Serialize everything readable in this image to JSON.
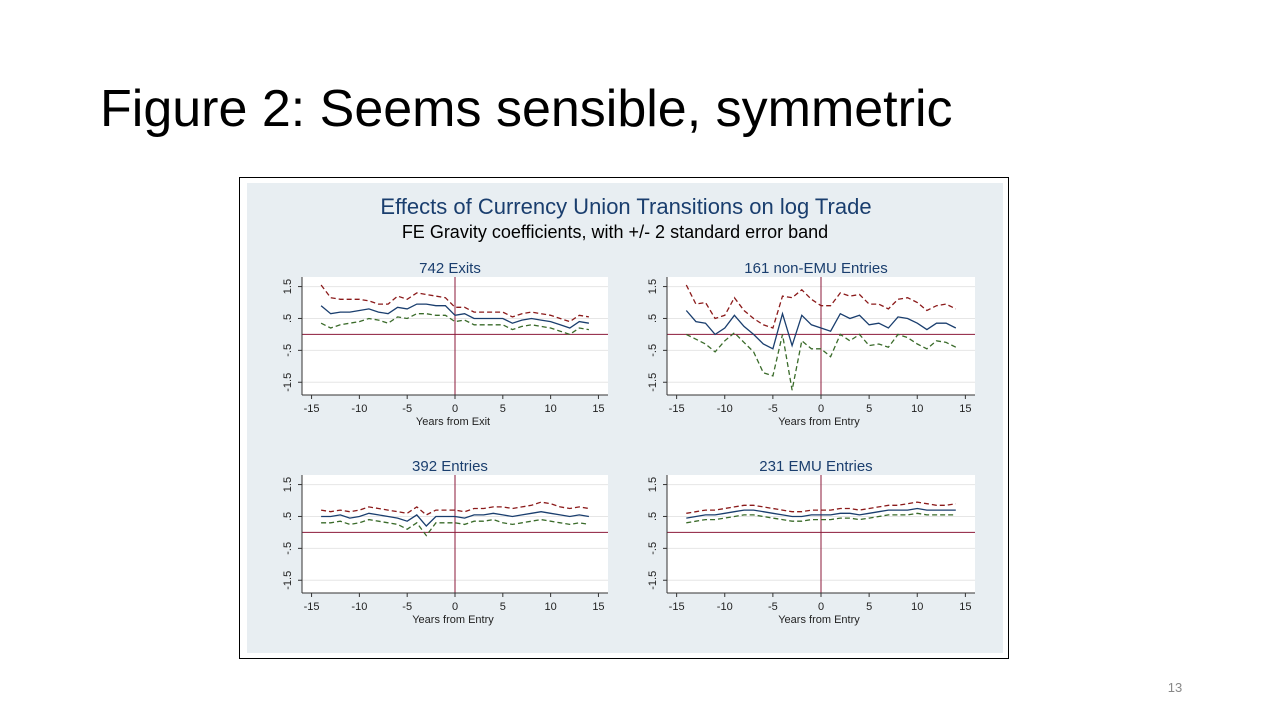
{
  "title": "Figure 2: Seems sensible, symmetric",
  "page_number": "13",
  "figure": {
    "title": "Effects of Currency Union Transitions on log Trade",
    "subtitle": "FE Gravity coefficients, with +/- 2 standard error band"
  },
  "chart_data": [
    {
      "type": "line",
      "title": "742 Exits",
      "xlabel": "Years from Exit",
      "x": [
        -14,
        -13,
        -12,
        -11,
        -10,
        -9,
        -8,
        -7,
        -6,
        -5,
        -4,
        -3,
        -2,
        -1,
        0,
        1,
        2,
        3,
        4,
        5,
        6,
        7,
        8,
        9,
        10,
        11,
        12,
        13,
        14
      ],
      "series": [
        {
          "color": "#8b1a1a",
          "dash": true,
          "values": [
            1.55,
            1.15,
            1.1,
            1.1,
            1.1,
            1.05,
            0.95,
            0.95,
            1.2,
            1.1,
            1.3,
            1.25,
            1.2,
            1.15,
            0.85,
            0.85,
            0.7,
            0.7,
            0.7,
            0.7,
            0.55,
            0.65,
            0.7,
            0.65,
            0.6,
            0.5,
            0.4,
            0.6,
            0.55
          ]
        },
        {
          "color": "#1a3e6e",
          "dash": false,
          "values": [
            0.9,
            0.65,
            0.7,
            0.7,
            0.75,
            0.8,
            0.7,
            0.65,
            0.85,
            0.8,
            0.95,
            0.95,
            0.9,
            0.9,
            0.6,
            0.65,
            0.5,
            0.5,
            0.5,
            0.5,
            0.35,
            0.45,
            0.5,
            0.45,
            0.4,
            0.3,
            0.2,
            0.4,
            0.35
          ]
        },
        {
          "color": "#3a6b2a",
          "dash": true,
          "values": [
            0.35,
            0.2,
            0.3,
            0.35,
            0.4,
            0.5,
            0.45,
            0.35,
            0.55,
            0.5,
            0.65,
            0.65,
            0.6,
            0.6,
            0.4,
            0.45,
            0.3,
            0.3,
            0.3,
            0.3,
            0.15,
            0.25,
            0.3,
            0.25,
            0.2,
            0.1,
            0.0,
            0.2,
            0.15
          ]
        }
      ],
      "xlim": [
        -16,
        16
      ],
      "xticks": [
        -15,
        -10,
        -5,
        0,
        5,
        10,
        15
      ],
      "ylim": [
        -1.9,
        1.8
      ],
      "yticks": [
        -1.5,
        {
          "value": -0.5,
          "label": "-.5"
        },
        {
          "value": 0.5,
          "label": ".5"
        },
        1.5
      ],
      "grid": true
    },
    {
      "type": "line",
      "title": "161 non-EMU Entries",
      "xlabel": "Years from Entry",
      "x": [
        -14,
        -13,
        -12,
        -11,
        -10,
        -9,
        -8,
        -7,
        -6,
        -5,
        -4,
        -3,
        -2,
        -1,
        0,
        1,
        2,
        3,
        4,
        5,
        6,
        7,
        8,
        9,
        10,
        11,
        12,
        13,
        14
      ],
      "series": [
        {
          "color": "#8b1a1a",
          "dash": true,
          "values": [
            1.55,
            0.95,
            1.0,
            0.5,
            0.6,
            1.15,
            0.75,
            0.5,
            0.3,
            0.2,
            1.2,
            1.15,
            1.4,
            1.1,
            0.9,
            0.9,
            1.3,
            1.2,
            1.25,
            0.95,
            0.95,
            0.8,
            1.1,
            1.15,
            1.0,
            0.75,
            0.9,
            0.95,
            0.8
          ]
        },
        {
          "color": "#1a3e6e",
          "dash": false,
          "values": [
            0.75,
            0.4,
            0.35,
            0.0,
            0.2,
            0.6,
            0.25,
            0.0,
            -0.3,
            -0.45,
            0.65,
            -0.35,
            0.6,
            0.3,
            0.2,
            0.1,
            0.65,
            0.5,
            0.6,
            0.3,
            0.35,
            0.2,
            0.55,
            0.5,
            0.35,
            0.15,
            0.35,
            0.35,
            0.2
          ]
        },
        {
          "color": "#3a6b2a",
          "dash": true,
          "values": [
            0.0,
            -0.15,
            -0.3,
            -0.55,
            -0.2,
            0.05,
            -0.25,
            -0.55,
            -1.2,
            -1.3,
            0.0,
            -1.75,
            -0.2,
            -0.45,
            -0.45,
            -0.7,
            0.0,
            -0.2,
            0.0,
            -0.35,
            -0.3,
            -0.4,
            0.0,
            -0.1,
            -0.3,
            -0.45,
            -0.2,
            -0.25,
            -0.4
          ]
        }
      ],
      "xlim": [
        -16,
        16
      ],
      "xticks": [
        -15,
        -10,
        -5,
        0,
        5,
        10,
        15
      ],
      "ylim": [
        -1.9,
        1.8
      ],
      "yticks": [
        -1.5,
        {
          "value": -0.5,
          "label": "-.5"
        },
        {
          "value": 0.5,
          "label": ".5"
        },
        1.5
      ],
      "grid": true
    },
    {
      "type": "line",
      "title": "392 Entries",
      "xlabel": "Years from Entry",
      "x": [
        -14,
        -13,
        -12,
        -11,
        -10,
        -9,
        -8,
        -7,
        -6,
        -5,
        -4,
        -3,
        -2,
        -1,
        0,
        1,
        2,
        3,
        4,
        5,
        6,
        7,
        8,
        9,
        10,
        11,
        12,
        13,
        14
      ],
      "series": [
        {
          "color": "#8b1a1a",
          "dash": true,
          "values": [
            0.7,
            0.65,
            0.7,
            0.65,
            0.7,
            0.8,
            0.75,
            0.7,
            0.65,
            0.6,
            0.8,
            0.55,
            0.7,
            0.7,
            0.7,
            0.65,
            0.75,
            0.75,
            0.8,
            0.8,
            0.75,
            0.8,
            0.85,
            0.95,
            0.9,
            0.8,
            0.75,
            0.8,
            0.75
          ]
        },
        {
          "color": "#1a3e6e",
          "dash": false,
          "values": [
            0.5,
            0.5,
            0.55,
            0.45,
            0.5,
            0.6,
            0.55,
            0.5,
            0.45,
            0.35,
            0.55,
            0.2,
            0.5,
            0.5,
            0.5,
            0.45,
            0.55,
            0.55,
            0.6,
            0.55,
            0.5,
            0.55,
            0.6,
            0.65,
            0.6,
            0.55,
            0.5,
            0.55,
            0.5
          ]
        },
        {
          "color": "#3a6b2a",
          "dash": true,
          "values": [
            0.3,
            0.3,
            0.35,
            0.25,
            0.3,
            0.4,
            0.35,
            0.3,
            0.25,
            0.1,
            0.3,
            -0.1,
            0.3,
            0.3,
            0.3,
            0.25,
            0.35,
            0.35,
            0.4,
            0.3,
            0.25,
            0.3,
            0.35,
            0.4,
            0.35,
            0.3,
            0.25,
            0.3,
            0.25
          ]
        }
      ],
      "xlim": [
        -16,
        16
      ],
      "xticks": [
        -15,
        -10,
        -5,
        0,
        5,
        10,
        15
      ],
      "ylim": [
        -1.9,
        1.8
      ],
      "yticks": [
        -1.5,
        {
          "value": -0.5,
          "label": "-.5"
        },
        {
          "value": 0.5,
          "label": ".5"
        },
        1.5
      ],
      "grid": true
    },
    {
      "type": "line",
      "title": "231 EMU Entries",
      "xlabel": "Years from Entry",
      "x": [
        -14,
        -13,
        -12,
        -11,
        -10,
        -9,
        -8,
        -7,
        -6,
        -5,
        -4,
        -3,
        -2,
        -1,
        0,
        1,
        2,
        3,
        4,
        5,
        6,
        7,
        8,
        9,
        10,
        11,
        12,
        13,
        14
      ],
      "series": [
        {
          "color": "#8b1a1a",
          "dash": true,
          "values": [
            0.6,
            0.65,
            0.7,
            0.7,
            0.75,
            0.8,
            0.85,
            0.85,
            0.8,
            0.75,
            0.7,
            0.65,
            0.65,
            0.7,
            0.7,
            0.7,
            0.75,
            0.75,
            0.7,
            0.75,
            0.8,
            0.85,
            0.85,
            0.9,
            0.95,
            0.9,
            0.85,
            0.85,
            0.9
          ]
        },
        {
          "color": "#1a3e6e",
          "dash": false,
          "values": [
            0.45,
            0.5,
            0.55,
            0.55,
            0.6,
            0.65,
            0.7,
            0.7,
            0.65,
            0.6,
            0.55,
            0.5,
            0.5,
            0.55,
            0.55,
            0.55,
            0.6,
            0.6,
            0.55,
            0.6,
            0.65,
            0.7,
            0.7,
            0.7,
            0.75,
            0.7,
            0.7,
            0.7,
            0.7
          ]
        },
        {
          "color": "#3a6b2a",
          "dash": true,
          "values": [
            0.3,
            0.35,
            0.4,
            0.4,
            0.45,
            0.5,
            0.55,
            0.55,
            0.5,
            0.45,
            0.4,
            0.35,
            0.35,
            0.4,
            0.4,
            0.4,
            0.45,
            0.45,
            0.4,
            0.45,
            0.5,
            0.55,
            0.55,
            0.55,
            0.6,
            0.55,
            0.55,
            0.55,
            0.55
          ]
        }
      ],
      "xlim": [
        -16,
        16
      ],
      "xticks": [
        -15,
        -10,
        -5,
        0,
        5,
        10,
        15
      ],
      "ylim": [
        -1.9,
        1.8
      ],
      "yticks": [
        -1.5,
        {
          "value": -0.5,
          "label": "-.5"
        },
        {
          "value": 0.5,
          "label": ".5"
        },
        1.5
      ],
      "grid": true
    }
  ]
}
